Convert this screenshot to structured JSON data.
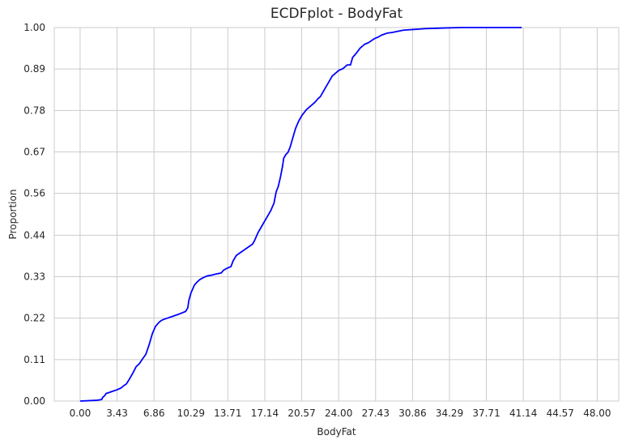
{
  "chart_data": {
    "type": "line",
    "title": "ECDFplot - BodyFat",
    "xlabel": "BodyFat",
    "ylabel": "Proportion",
    "xlim": [
      -2.4,
      50.0
    ],
    "ylim": [
      0,
      1
    ],
    "grid": true,
    "x_ticks": [
      "0.00",
      "3.43",
      "6.86",
      "10.29",
      "13.71",
      "17.14",
      "20.57",
      "24.00",
      "27.43",
      "30.86",
      "34.29",
      "37.71",
      "41.14",
      "44.57",
      "48.00"
    ],
    "x_tick_values": [
      0,
      3.43,
      6.86,
      10.29,
      13.71,
      17.14,
      20.57,
      24.0,
      27.43,
      30.86,
      34.29,
      37.71,
      41.14,
      44.57,
      48.0
    ],
    "y_ticks": [
      "0.00",
      "0.11",
      "0.22",
      "0.33",
      "0.44",
      "0.56",
      "0.67",
      "0.78",
      "0.89",
      "1.00"
    ],
    "y_tick_values": [
      0,
      0.111,
      0.222,
      0.333,
      0.444,
      0.556,
      0.667,
      0.778,
      0.889,
      1.0
    ],
    "series": [
      {
        "color": "#0000ff",
        "x": [
          0.0,
          1.5,
          2.0,
          2.1,
          2.3,
          2.4,
          2.6,
          3.0,
          3.4,
          3.8,
          4.0,
          4.3,
          4.6,
          4.9,
          5.2,
          5.5,
          5.8,
          6.1,
          6.4,
          6.7,
          7.0,
          7.3,
          7.5,
          7.7,
          7.9,
          8.2,
          8.6,
          9.2,
          9.8,
          10.0,
          10.1,
          10.3,
          10.6,
          10.9,
          11.0,
          11.1,
          11.4,
          11.8,
          12.2,
          12.6,
          13.1,
          13.3,
          13.6,
          14.0,
          14.2,
          14.3,
          14.5,
          15.0,
          15.5,
          16.0,
          16.2,
          16.5,
          16.8,
          17.1,
          17.4,
          17.7,
          18.0,
          18.2,
          18.4,
          18.6,
          18.8,
          18.9,
          19.1,
          19.3,
          19.5,
          19.7,
          20.0,
          20.3,
          20.6,
          21.0,
          21.4,
          21.8,
          22.1,
          22.3,
          22.5,
          22.7,
          23.0,
          23.4,
          23.8,
          24.0,
          24.4,
          24.8,
          25.1,
          25.3,
          25.6,
          26.0,
          26.4,
          26.8,
          27.3,
          27.7,
          28.0,
          28.5,
          29.0,
          29.5,
          30.0,
          30.5,
          31.0,
          31.5,
          32.0,
          33.0,
          34.0,
          35.5,
          37.0,
          38.5,
          41.0
        ],
        "y": [
          0.0,
          0.002,
          0.004,
          0.01,
          0.015,
          0.02,
          0.022,
          0.026,
          0.03,
          0.035,
          0.04,
          0.046,
          0.06,
          0.075,
          0.092,
          0.1,
          0.113,
          0.125,
          0.15,
          0.18,
          0.2,
          0.21,
          0.215,
          0.218,
          0.22,
          0.223,
          0.227,
          0.233,
          0.24,
          0.25,
          0.27,
          0.29,
          0.31,
          0.32,
          0.322,
          0.325,
          0.33,
          0.335,
          0.337,
          0.34,
          0.343,
          0.35,
          0.355,
          0.36,
          0.375,
          0.38,
          0.39,
          0.4,
          0.41,
          0.42,
          0.43,
          0.45,
          0.465,
          0.48,
          0.495,
          0.51,
          0.53,
          0.56,
          0.575,
          0.6,
          0.63,
          0.65,
          0.66,
          0.666,
          0.68,
          0.7,
          0.73,
          0.75,
          0.765,
          0.78,
          0.79,
          0.8,
          0.81,
          0.815,
          0.825,
          0.835,
          0.85,
          0.87,
          0.88,
          0.885,
          0.89,
          0.9,
          0.9,
          0.92,
          0.93,
          0.945,
          0.955,
          0.96,
          0.97,
          0.975,
          0.98,
          0.985,
          0.987,
          0.99,
          0.993,
          0.994,
          0.995,
          0.996,
          0.997,
          0.998,
          0.999,
          1.0,
          1.0,
          1.0,
          1.0
        ]
      }
    ]
  }
}
